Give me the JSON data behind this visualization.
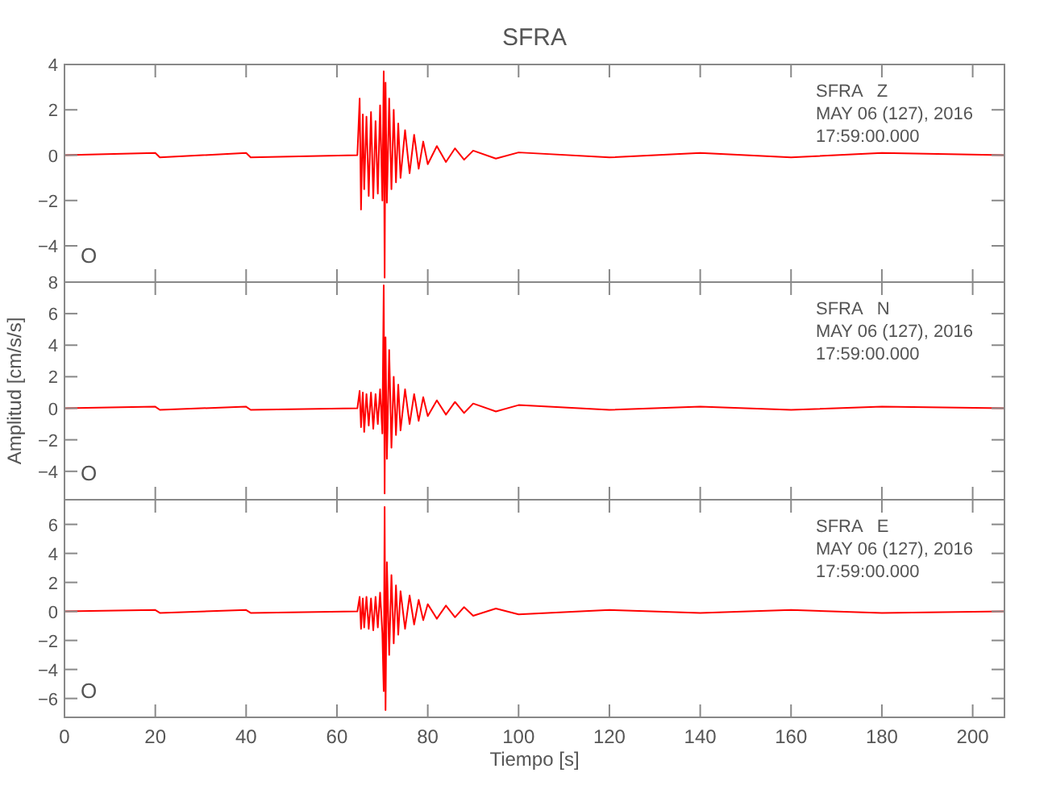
{
  "chart_data": [
    {
      "type": "line",
      "title": "SFRA",
      "annotations": [
        "SFRA   Z",
        "MAY 06 (127), 2016",
        "17:59:00.000",
        "O"
      ],
      "xlim": [
        0,
        207
      ],
      "xticks": [
        0,
        20,
        40,
        60,
        80,
        100,
        120,
        140,
        160,
        180,
        200
      ],
      "ylim": [
        -5.6,
        4
      ],
      "yticks": [
        -4,
        -2,
        0,
        2,
        4
      ],
      "tick_labels": "y",
      "series": [
        {
          "color": "#ff0000",
          "x": [
            0,
            20,
            21,
            40,
            41,
            64.5,
            65,
            65.3,
            65.7,
            66,
            66.5,
            67,
            67.5,
            68,
            68.5,
            69,
            69.5,
            70,
            70.3,
            70.5,
            70.7,
            71,
            71.5,
            72,
            72.5,
            73,
            73.5,
            74,
            75,
            76,
            77,
            78,
            79,
            80,
            82,
            84,
            86,
            88,
            90,
            95,
            100,
            120,
            140,
            160,
            180,
            207
          ],
          "values": [
            0,
            0.1,
            -0.1,
            0.1,
            -0.1,
            0,
            2.5,
            -2.4,
            1.8,
            -1.5,
            1.7,
            -1.8,
            1.9,
            -1.9,
            1.5,
            -1.7,
            2.2,
            -2,
            3.7,
            -5.4,
            3.2,
            -2.1,
            2.5,
            -1.5,
            2,
            -1.2,
            1.4,
            -1,
            1.1,
            -0.8,
            0.9,
            -0.6,
            0.6,
            -0.4,
            0.4,
            -0.3,
            0.3,
            -0.2,
            0.2,
            -0.15,
            0.12,
            -0.1,
            0.1,
            -0.1,
            0.1,
            0
          ]
        }
      ]
    },
    {
      "type": "line",
      "ylabel": "Amplitud [cm/s/s]",
      "annotations": [
        "SFRA   N",
        "MAY 06 (127), 2016",
        "17:59:00.000",
        "O"
      ],
      "xlim": [
        0,
        207
      ],
      "xticks": [
        0,
        20,
        40,
        60,
        80,
        100,
        120,
        140,
        160,
        180,
        200
      ],
      "ylim": [
        -5.8,
        8
      ],
      "yticks": [
        -4,
        -2,
        0,
        2,
        4,
        6,
        8
      ],
      "tick_labels": "y",
      "series": [
        {
          "color": "#ff0000",
          "x": [
            0,
            20,
            21,
            40,
            41,
            64.5,
            65,
            65.3,
            65.7,
            66,
            66.5,
            67,
            67.5,
            68,
            68.5,
            69,
            69.5,
            70,
            70.3,
            70.5,
            70.7,
            71,
            71.5,
            72,
            72.5,
            73,
            73.5,
            74,
            75,
            76,
            77,
            78,
            79,
            80,
            82,
            84,
            86,
            88,
            90,
            95,
            100,
            120,
            140,
            160,
            180,
            207
          ],
          "values": [
            0,
            0.1,
            -0.1,
            0.1,
            -0.1,
            0,
            1.1,
            -1.2,
            1,
            -1.5,
            0.9,
            -1.1,
            1,
            -1.3,
            0.9,
            -1,
            1.2,
            -1.6,
            7.8,
            -5.4,
            4.5,
            -3.2,
            3.7,
            -2.5,
            2,
            -1.7,
            1.5,
            -1.4,
            1.2,
            -1,
            0.9,
            -0.8,
            0.7,
            -0.5,
            0.5,
            -0.4,
            0.4,
            -0.3,
            0.3,
            -0.2,
            0.2,
            -0.1,
            0.1,
            -0.1,
            0.1,
            0
          ]
        }
      ]
    },
    {
      "type": "line",
      "xlabel": "Tiempo [s]",
      "annotations": [
        "SFRA   E",
        "MAY 06 (127), 2016",
        "17:59:00.000",
        "O"
      ],
      "xlim": [
        0,
        207
      ],
      "xticks": [
        0,
        20,
        40,
        60,
        80,
        100,
        120,
        140,
        160,
        180,
        200
      ],
      "ylim": [
        -7.3,
        7.7
      ],
      "yticks": [
        -6,
        -4,
        -2,
        0,
        2,
        4,
        6
      ],
      "series": [
        {
          "color": "#ff0000",
          "x": [
            0,
            20,
            21,
            40,
            41,
            64.5,
            65,
            65.3,
            65.7,
            66,
            66.5,
            67,
            67.5,
            68,
            68.5,
            69,
            69.5,
            70,
            70.3,
            70.5,
            70.7,
            71,
            71.5,
            72,
            72.5,
            73,
            73.5,
            74,
            75,
            76,
            77,
            78,
            79,
            80,
            82,
            84,
            86,
            88,
            90,
            95,
            100,
            120,
            140,
            160,
            180,
            207
          ],
          "values": [
            0,
            0.1,
            -0.1,
            0.1,
            -0.1,
            0,
            1,
            -1.2,
            0.9,
            -1.1,
            1,
            -1.2,
            0.9,
            -1.3,
            1,
            -1.1,
            1.3,
            -1.5,
            -5.5,
            7.2,
            -6.8,
            3.4,
            -3,
            2.5,
            -2.2,
            1.8,
            -1.6,
            1.4,
            -1.2,
            1.1,
            -0.9,
            0.8,
            -0.6,
            0.5,
            -0.5,
            0.4,
            -0.4,
            0.3,
            -0.3,
            0.2,
            -0.2,
            0.1,
            -0.1,
            0.1,
            -0.1,
            0
          ]
        }
      ]
    }
  ]
}
